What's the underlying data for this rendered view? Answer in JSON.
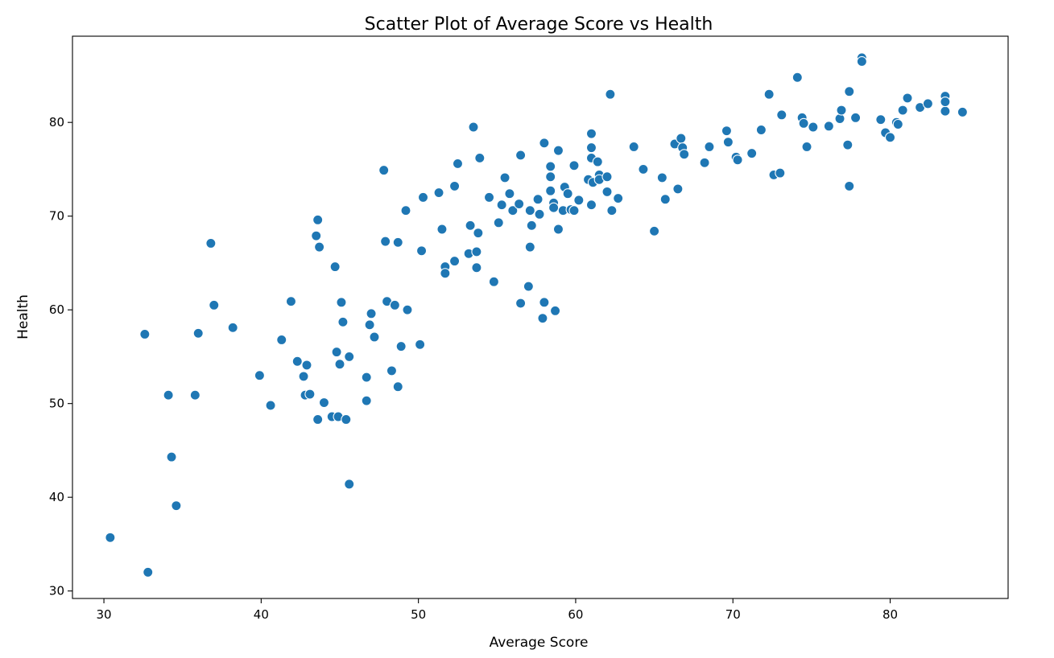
{
  "chart_data": {
    "type": "scatter",
    "title": "Scatter Plot of Average Score vs Health",
    "xlabel": "Average Score",
    "ylabel": "Health",
    "xlim": [
      28,
      87.5
    ],
    "ylim": [
      29.2,
      89.2
    ],
    "xticks": [
      30,
      40,
      50,
      60,
      70,
      80
    ],
    "yticks": [
      30,
      40,
      50,
      60,
      70,
      80
    ],
    "grid": false,
    "color": "#1f77b4",
    "points": [
      [
        30.4,
        35.7
      ],
      [
        32.8,
        32.0
      ],
      [
        32.6,
        57.4
      ],
      [
        34.1,
        50.9
      ],
      [
        34.3,
        44.3
      ],
      [
        34.6,
        39.1
      ],
      [
        35.8,
        50.9
      ],
      [
        36.0,
        57.5
      ],
      [
        36.8,
        67.1
      ],
      [
        37.0,
        60.5
      ],
      [
        38.2,
        58.1
      ],
      [
        39.9,
        53.0
      ],
      [
        40.6,
        49.8
      ],
      [
        41.3,
        56.8
      ],
      [
        41.9,
        60.9
      ],
      [
        42.3,
        54.5
      ],
      [
        42.7,
        52.9
      ],
      [
        42.8,
        50.9
      ],
      [
        42.9,
        54.1
      ],
      [
        43.1,
        51.0
      ],
      [
        43.5,
        67.9
      ],
      [
        43.6,
        69.6
      ],
      [
        43.6,
        48.3
      ],
      [
        43.7,
        66.7
      ],
      [
        44.0,
        50.1
      ],
      [
        44.5,
        48.6
      ],
      [
        44.7,
        64.6
      ],
      [
        44.8,
        55.5
      ],
      [
        44.9,
        48.6
      ],
      [
        45.0,
        54.2
      ],
      [
        45.1,
        60.8
      ],
      [
        45.2,
        58.7
      ],
      [
        45.4,
        48.3
      ],
      [
        45.6,
        55.0
      ],
      [
        45.6,
        41.4
      ],
      [
        46.7,
        52.8
      ],
      [
        46.7,
        50.3
      ],
      [
        46.9,
        58.4
      ],
      [
        47.0,
        59.6
      ],
      [
        47.2,
        57.1
      ],
      [
        47.8,
        74.9
      ],
      [
        47.9,
        67.3
      ],
      [
        48.0,
        60.9
      ],
      [
        48.3,
        53.5
      ],
      [
        48.5,
        60.5
      ],
      [
        48.7,
        51.8
      ],
      [
        48.7,
        67.2
      ],
      [
        48.9,
        56.1
      ],
      [
        49.2,
        70.6
      ],
      [
        49.3,
        60.0
      ],
      [
        50.1,
        56.3
      ],
      [
        50.2,
        66.3
      ],
      [
        50.3,
        72.0
      ],
      [
        51.3,
        72.5
      ],
      [
        51.5,
        68.6
      ],
      [
        51.7,
        64.6
      ],
      [
        51.7,
        63.9
      ],
      [
        52.3,
        73.2
      ],
      [
        52.3,
        65.2
      ],
      [
        52.5,
        75.6
      ],
      [
        53.2,
        66.0
      ],
      [
        53.3,
        69.0
      ],
      [
        53.5,
        79.5
      ],
      [
        53.7,
        66.2
      ],
      [
        53.7,
        64.5
      ],
      [
        53.8,
        68.2
      ],
      [
        53.9,
        76.2
      ],
      [
        54.5,
        72.0
      ],
      [
        54.8,
        63.0
      ],
      [
        55.1,
        69.3
      ],
      [
        55.3,
        71.2
      ],
      [
        55.5,
        74.1
      ],
      [
        55.8,
        72.4
      ],
      [
        56.0,
        70.6
      ],
      [
        56.4,
        71.3
      ],
      [
        56.5,
        60.7
      ],
      [
        56.5,
        76.5
      ],
      [
        57.0,
        62.5
      ],
      [
        57.1,
        66.7
      ],
      [
        57.1,
        70.6
      ],
      [
        57.2,
        69.0
      ],
      [
        57.6,
        71.8
      ],
      [
        57.7,
        70.2
      ],
      [
        58.0,
        77.8
      ],
      [
        58.0,
        60.8
      ],
      [
        57.9,
        59.1
      ],
      [
        58.4,
        75.3
      ],
      [
        58.4,
        74.2
      ],
      [
        58.4,
        72.7
      ],
      [
        58.6,
        71.4
      ],
      [
        58.6,
        70.9
      ],
      [
        58.7,
        59.9
      ],
      [
        58.9,
        77.0
      ],
      [
        58.9,
        68.6
      ],
      [
        59.2,
        70.6
      ],
      [
        59.3,
        73.1
      ],
      [
        59.5,
        72.4
      ],
      [
        59.7,
        70.7
      ],
      [
        59.9,
        75.4
      ],
      [
        59.9,
        70.6
      ],
      [
        60.2,
        71.7
      ],
      [
        60.8,
        73.9
      ],
      [
        61.0,
        78.8
      ],
      [
        61.0,
        77.3
      ],
      [
        61.0,
        76.2
      ],
      [
        61.0,
        71.2
      ],
      [
        61.1,
        73.6
      ],
      [
        61.4,
        75.8
      ],
      [
        61.5,
        74.4
      ],
      [
        61.5,
        73.9
      ],
      [
        62.0,
        74.2
      ],
      [
        62.0,
        72.6
      ],
      [
        62.2,
        83.0
      ],
      [
        62.3,
        70.6
      ],
      [
        62.7,
        71.9
      ],
      [
        63.7,
        77.4
      ],
      [
        64.3,
        75.0
      ],
      [
        65.0,
        68.4
      ],
      [
        65.5,
        74.1
      ],
      [
        65.7,
        71.8
      ],
      [
        66.3,
        77.7
      ],
      [
        66.5,
        72.9
      ],
      [
        66.7,
        78.3
      ],
      [
        66.8,
        77.3
      ],
      [
        66.9,
        76.6
      ],
      [
        68.2,
        75.7
      ],
      [
        68.5,
        77.4
      ],
      [
        69.6,
        79.1
      ],
      [
        69.7,
        77.9
      ],
      [
        70.2,
        76.3
      ],
      [
        70.3,
        76.0
      ],
      [
        71.2,
        76.7
      ],
      [
        71.8,
        79.2
      ],
      [
        72.3,
        83.0
      ],
      [
        72.6,
        74.4
      ],
      [
        73.0,
        74.6
      ],
      [
        73.1,
        80.8
      ],
      [
        74.1,
        84.8
      ],
      [
        74.4,
        80.5
      ],
      [
        74.5,
        79.9
      ],
      [
        74.7,
        77.4
      ],
      [
        75.1,
        79.5
      ],
      [
        76.1,
        79.6
      ],
      [
        76.8,
        80.4
      ],
      [
        76.9,
        81.3
      ],
      [
        77.3,
        77.6
      ],
      [
        77.4,
        83.3
      ],
      [
        77.4,
        73.2
      ],
      [
        77.8,
        80.5
      ],
      [
        78.2,
        86.9
      ],
      [
        78.2,
        86.5
      ],
      [
        79.4,
        80.3
      ],
      [
        79.7,
        78.9
      ],
      [
        80.0,
        78.4
      ],
      [
        80.4,
        80.0
      ],
      [
        80.5,
        79.8
      ],
      [
        80.8,
        81.3
      ],
      [
        81.1,
        82.6
      ],
      [
        81.9,
        81.6
      ],
      [
        82.4,
        82.0
      ],
      [
        83.5,
        82.8
      ],
      [
        83.5,
        81.2
      ],
      [
        83.5,
        82.2
      ],
      [
        84.6,
        81.1
      ]
    ]
  }
}
